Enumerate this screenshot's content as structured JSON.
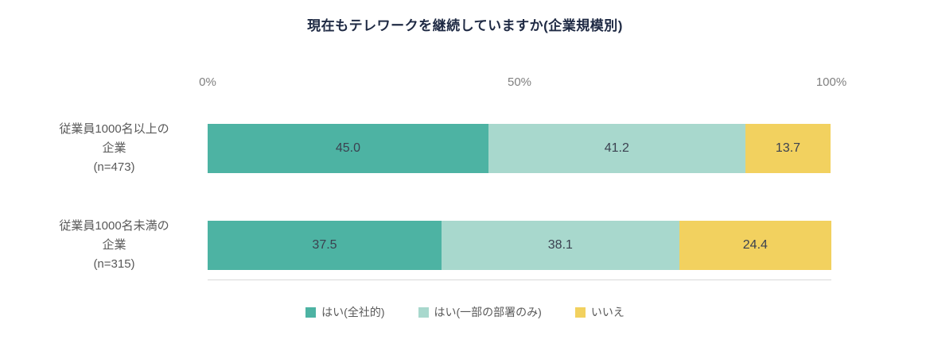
{
  "title": "現在もテレワークを継続していますか(企業規模別)",
  "chart_data": {
    "type": "bar",
    "orientation": "horizontal",
    "stacked": true,
    "title": "現在もテレワークを継続していますか(企業規模別)",
    "xlim": [
      0,
      100
    ],
    "grid": false,
    "legend_position": "bottom",
    "ticks": [
      {
        "label": "0%",
        "pos": 0
      },
      {
        "label": "50%",
        "pos": 50
      },
      {
        "label": "100%",
        "pos": 100
      }
    ],
    "categories": [
      {
        "lines": [
          "従業員1000名以上の",
          "企業",
          "(n=473)"
        ]
      },
      {
        "lines": [
          "従業員1000名未満の",
          "企業",
          "(n=315)"
        ]
      }
    ],
    "series": [
      {
        "name": "はい(全社的)",
        "color": "#4DB3A3",
        "values": [
          45.0,
          37.5
        ]
      },
      {
        "name": "はい(一部の部署のみ)",
        "color": "#A8D8CD",
        "values": [
          41.2,
          38.1
        ]
      },
      {
        "name": "いいえ",
        "color": "#F2D15F",
        "values": [
          13.7,
          24.4
        ]
      }
    ]
  }
}
